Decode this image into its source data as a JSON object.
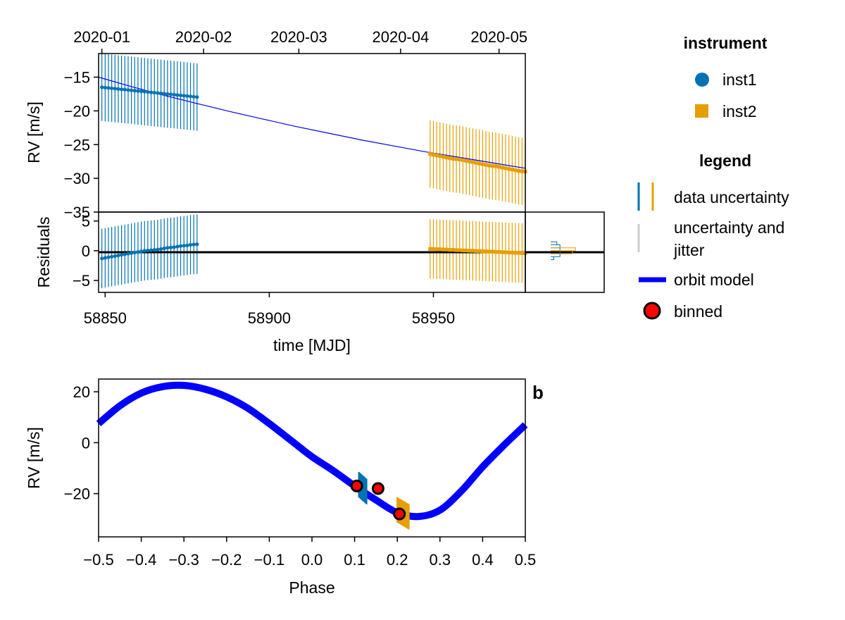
{
  "colors": {
    "inst1": "#0072b2",
    "inst2": "#e69f00",
    "model": "#0000ff",
    "binned_fill": "#ff0000",
    "jitter": "#cccccc",
    "zero_line": "#000000"
  },
  "legend": {
    "instrument_title": "instrument",
    "instrument_items": [
      {
        "label": "inst1",
        "marker": "circle",
        "color": "#0072b2"
      },
      {
        "label": "inst2",
        "marker": "square",
        "color": "#e69f00"
      }
    ],
    "legend_title": "legend",
    "data_uncertainty_label": "data uncertainty",
    "jitter_label_line1": "uncertainty and",
    "jitter_label_line2": "jitter",
    "orbit_model_label": "orbit model",
    "binned_label": "binned"
  },
  "panel_label": "b",
  "chart_data": [
    {
      "type": "scatter",
      "panel": "rv_vs_time",
      "xlabel": "",
      "ylabel": "RV [m/s]",
      "xlim": [
        58848,
        58978
      ],
      "ylim": [
        -35,
        -11.5
      ],
      "yticks": [
        -15,
        -20,
        -25,
        -30,
        -35
      ],
      "ytick_labels": [
        "−15",
        "−20",
        "−25",
        "−30",
        "−35"
      ],
      "top_axis": {
        "ticks_mjd": [
          58849,
          58880,
          58909,
          58940,
          58970
        ],
        "tick_labels": [
          "2020-01",
          "2020-02",
          "2020-03",
          "2020-04",
          "2020-05"
        ]
      },
      "model": {
        "x": [
          58848,
          58858,
          58868,
          58878,
          58888,
          58898,
          58908,
          58918,
          58928,
          58938,
          58948,
          58958,
          58968,
          58978
        ],
        "y": [
          -15.0,
          -16.4,
          -17.7,
          -18.9,
          -20.1,
          -21.2,
          -22.3,
          -23.3,
          -24.3,
          -25.2,
          -26.1,
          -26.9,
          -27.7,
          -28.5
        ]
      },
      "series": [
        {
          "name": "inst1",
          "marker": "circle",
          "x": [
            58849,
            58850,
            58851,
            58852,
            58853,
            58854,
            58855,
            58856,
            58857,
            58858,
            58859,
            58860,
            58861,
            58862,
            58863,
            58864,
            58865,
            58866,
            58867,
            58868,
            58869,
            58870,
            58871,
            58872,
            58873,
            58874,
            58875,
            58876,
            58877,
            58878
          ],
          "y": [
            -16.5,
            -16.55,
            -16.6,
            -16.65,
            -16.7,
            -16.75,
            -16.8,
            -16.85,
            -16.9,
            -16.95,
            -17.0,
            -17.05,
            -17.1,
            -17.15,
            -17.2,
            -17.25,
            -17.3,
            -17.35,
            -17.4,
            -17.45,
            -17.5,
            -17.55,
            -17.6,
            -17.65,
            -17.7,
            -17.75,
            -17.8,
            -17.85,
            -17.9,
            -17.95
          ],
          "err": 5
        },
        {
          "name": "inst2",
          "marker": "square",
          "x": [
            58949,
            58950,
            58951,
            58952,
            58953,
            58954,
            58955,
            58956,
            58957,
            58958,
            58959,
            58960,
            58961,
            58962,
            58963,
            58964,
            58965,
            58966,
            58967,
            58968,
            58969,
            58970,
            58971,
            58972,
            58973,
            58974,
            58975,
            58976,
            58977,
            58978
          ],
          "y": [
            -26.4,
            -26.5,
            -26.6,
            -26.7,
            -26.8,
            -26.9,
            -27.0,
            -27.1,
            -27.15,
            -27.2,
            -27.3,
            -27.4,
            -27.5,
            -27.6,
            -27.7,
            -27.8,
            -27.9,
            -28.0,
            -28.1,
            -28.15,
            -28.2,
            -28.3,
            -28.4,
            -28.5,
            -28.6,
            -28.7,
            -28.8,
            -28.9,
            -28.95,
            -29.0
          ],
          "err": 5
        }
      ]
    },
    {
      "type": "scatter",
      "panel": "residuals",
      "xlabel": "time [MJD]",
      "ylabel": "Residuals",
      "xlim": [
        58848,
        58978
      ],
      "ylim": [
        -7,
        6.5
      ],
      "xticks": [
        58850,
        58900,
        58950
      ],
      "xtick_labels": [
        "58850",
        "58900",
        "58950"
      ],
      "yticks": [
        5,
        0,
        -5
      ],
      "ytick_labels": [
        "5",
        "0",
        "−5"
      ],
      "series": [
        {
          "name": "inst1",
          "marker": "circle",
          "x": [
            58849,
            58850,
            58851,
            58852,
            58853,
            58854,
            58855,
            58856,
            58857,
            58858,
            58859,
            58860,
            58861,
            58862,
            58863,
            58864,
            58865,
            58866,
            58867,
            58868,
            58869,
            58870,
            58871,
            58872,
            58873,
            58874,
            58875,
            58876,
            58877,
            58878
          ],
          "y": [
            -1.3,
            -1.2,
            -1.1,
            -1.0,
            -0.9,
            -0.8,
            -0.7,
            -0.6,
            -0.5,
            -0.4,
            -0.3,
            -0.2,
            -0.1,
            0.0,
            0.05,
            0.1,
            0.15,
            0.2,
            0.3,
            0.4,
            0.5,
            0.55,
            0.6,
            0.7,
            0.8,
            0.85,
            0.9,
            1.0,
            1.05,
            1.1
          ],
          "err": 5
        },
        {
          "name": "inst2",
          "marker": "square",
          "x": [
            58949,
            58950,
            58951,
            58952,
            58953,
            58954,
            58955,
            58956,
            58957,
            58958,
            58959,
            58960,
            58961,
            58962,
            58963,
            58964,
            58965,
            58966,
            58967,
            58968,
            58969,
            58970,
            58971,
            58972,
            58973,
            58974,
            58975,
            58976,
            58977,
            58978
          ],
          "y": [
            0.3,
            0.3,
            0.25,
            0.25,
            0.2,
            0.2,
            0.15,
            0.15,
            0.1,
            0.1,
            0.05,
            0.05,
            0.0,
            0.0,
            -0.05,
            -0.05,
            -0.1,
            -0.1,
            -0.15,
            -0.15,
            -0.2,
            -0.2,
            -0.25,
            -0.25,
            -0.3,
            -0.3,
            -0.35,
            -0.35,
            -0.4,
            -0.4
          ],
          "err": 5
        }
      ],
      "residual_histogram": {
        "inst1_bins": [
          -1.5,
          -1.0,
          -0.5,
          0.0,
          0.5,
          1.0
        ],
        "inst1_counts": [
          2,
          6,
          6,
          6,
          6,
          4
        ],
        "inst2_bins": [
          -0.5,
          0.0,
          0.5
        ],
        "inst2_counts": [
          14,
          16
        ]
      }
    },
    {
      "type": "line",
      "panel": "rv_vs_phase",
      "xlabel": "Phase",
      "ylabel": "RV [m/s]",
      "xlim": [
        -0.5,
        0.5
      ],
      "ylim": [
        -37,
        25
      ],
      "xticks": [
        -0.5,
        -0.4,
        -0.3,
        -0.2,
        -0.1,
        0.0,
        0.1,
        0.2,
        0.3,
        0.4,
        0.5
      ],
      "xtick_labels": [
        "−0.5",
        "−0.4",
        "−0.3",
        "−0.2",
        "−0.1",
        "0.0",
        "0.1",
        "0.2",
        "0.3",
        "0.4",
        "0.5"
      ],
      "yticks": [
        20,
        0,
        -20
      ],
      "ytick_labels": [
        "20",
        "0",
        "−20"
      ],
      "model": {
        "x": [
          -0.5,
          -0.45,
          -0.4,
          -0.35,
          -0.3,
          -0.25,
          -0.2,
          -0.15,
          -0.1,
          -0.05,
          0.0,
          0.05,
          0.1,
          0.15,
          0.2,
          0.25,
          0.3,
          0.35,
          0.4,
          0.45,
          0.5
        ],
        "y": [
          7.5,
          14.5,
          19.5,
          22.0,
          22.5,
          21.0,
          18.0,
          13.5,
          7.5,
          1.0,
          -5.5,
          -11.0,
          -17.0,
          -22.5,
          -27.5,
          -29.0,
          -26.5,
          -19.0,
          -9.5,
          -1.0,
          7.0
        ]
      },
      "series": [
        {
          "name": "inst1",
          "x": [
            0.11,
            0.112,
            0.114,
            0.116,
            0.118,
            0.12,
            0.122,
            0.124,
            0.126,
            0.128
          ],
          "y": [
            -16.5,
            -16.8,
            -17.1,
            -17.4,
            -17.7,
            -18.0,
            -18.3,
            -18.6,
            -18.9,
            -19.2
          ],
          "err": 5
        },
        {
          "name": "inst2",
          "x": [
            0.2,
            0.203,
            0.206,
            0.209,
            0.212,
            0.215,
            0.218,
            0.221,
            0.224,
            0.227
          ],
          "y": [
            -26.4,
            -26.7,
            -27.0,
            -27.3,
            -27.6,
            -27.9,
            -28.2,
            -28.5,
            -28.8,
            -29.1
          ],
          "err": 5
        }
      ],
      "binned": {
        "x": [
          0.105,
          0.155,
          0.205
        ],
        "y": [
          -17.0,
          -18.0,
          -28.0
        ]
      }
    }
  ]
}
